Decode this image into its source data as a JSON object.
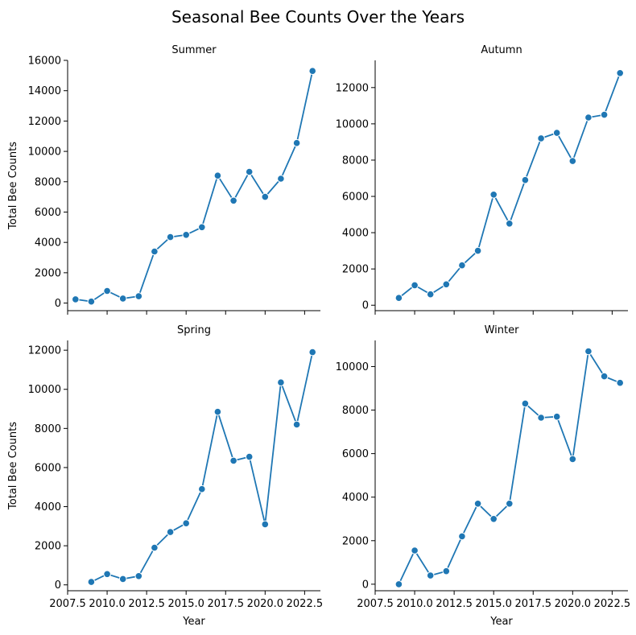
{
  "figure": {
    "title": "Seasonal Bee Counts Over the Years"
  },
  "chart_data": [
    {
      "type": "line",
      "title": "Summer",
      "xlabel": "",
      "ylabel": "Total Bee Counts",
      "xlim": [
        2007.5,
        2023.5
      ],
      "ylim": [
        -500,
        16000
      ],
      "yticks": [
        0,
        2000,
        4000,
        6000,
        8000,
        10000,
        12000,
        14000,
        16000
      ],
      "xticks": [],
      "x": [
        2008,
        2009,
        2010,
        2011,
        2012,
        2013,
        2014,
        2015,
        2016,
        2017,
        2018,
        2019,
        2020,
        2021,
        2022,
        2023
      ],
      "values": [
        250,
        100,
        800,
        300,
        450,
        3400,
        4350,
        4500,
        5000,
        8400,
        6750,
        8650,
        7000,
        8200,
        10550,
        15300
      ],
      "color": "#1f77b4"
    },
    {
      "type": "line",
      "title": "Autumn",
      "xlabel": "",
      "ylabel": "",
      "xlim": [
        2007.5,
        2023.5
      ],
      "ylim": [
        -300,
        13500
      ],
      "yticks": [
        0,
        2000,
        4000,
        6000,
        8000,
        10000,
        12000
      ],
      "xticks": [],
      "x": [
        2009,
        2010,
        2011,
        2012,
        2013,
        2014,
        2015,
        2016,
        2017,
        2018,
        2019,
        2020,
        2021,
        2022,
        2023
      ],
      "values": [
        400,
        1100,
        600,
        1150,
        2200,
        3000,
        6100,
        4500,
        6900,
        9200,
        9500,
        7950,
        10350,
        10500,
        12800
      ],
      "color": "#1f77b4"
    },
    {
      "type": "line",
      "title": "Spring",
      "xlabel": "Year",
      "ylabel": "Total Bee Counts",
      "xlim": [
        2007.5,
        2023.5
      ],
      "ylim": [
        -300,
        12500
      ],
      "yticks": [
        0,
        2000,
        4000,
        6000,
        8000,
        10000,
        12000
      ],
      "xticks": [
        "2007.5",
        "2010.0",
        "2012.5",
        "2015.0",
        "2017.5",
        "2020.0",
        "2022.5"
      ],
      "x": [
        2009,
        2010,
        2011,
        2012,
        2013,
        2014,
        2015,
        2016,
        2017,
        2018,
        2019,
        2020,
        2021,
        2022,
        2023
      ],
      "values": [
        150,
        550,
        300,
        450,
        1900,
        2700,
        3150,
        4900,
        8850,
        6350,
        6550,
        3100,
        10350,
        8200,
        11900
      ],
      "color": "#1f77b4"
    },
    {
      "type": "line",
      "title": "Winter",
      "xlabel": "Year",
      "ylabel": "",
      "xlim": [
        2007.5,
        2023.5
      ],
      "ylim": [
        -300,
        11200
      ],
      "yticks": [
        0,
        2000,
        4000,
        6000,
        8000,
        10000
      ],
      "xticks": [
        "2007.5",
        "2010.0",
        "2012.5",
        "2015.0",
        "2017.5",
        "2020.0",
        "2022.5"
      ],
      "x": [
        2009,
        2010,
        2011,
        2012,
        2013,
        2014,
        2015,
        2016,
        2017,
        2018,
        2019,
        2020,
        2021,
        2022,
        2023
      ],
      "values": [
        0,
        1550,
        400,
        600,
        2200,
        3700,
        3000,
        3700,
        8300,
        7650,
        7700,
        5750,
        10700,
        9550,
        9250
      ],
      "color": "#1f77b4"
    }
  ]
}
